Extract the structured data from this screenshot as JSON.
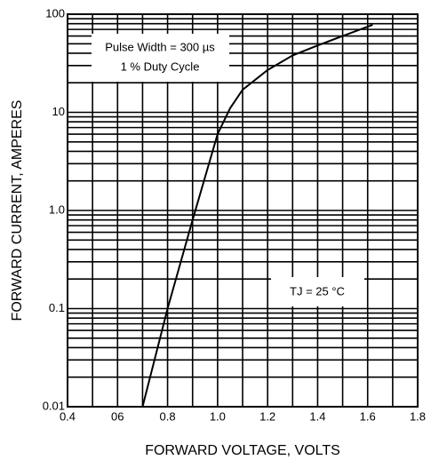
{
  "chart_data": {
    "type": "line",
    "xlabel": "FORWARD VOLTAGE, VOLTS",
    "ylabel": "FORWARD CURRENT, AMPERES",
    "annotations": [
      "Pulse Width = 300 µs",
      "1 % Duty Cycle",
      "TJ = 25 °C"
    ],
    "x": [
      0.7,
      0.8,
      0.9,
      1.0,
      1.05,
      1.1,
      1.2,
      1.3,
      1.4,
      1.5,
      1.62
    ],
    "values": [
      0.01,
      0.1,
      0.8,
      6,
      11,
      17,
      27,
      38,
      48,
      60,
      78
    ],
    "color": "#000000",
    "xlim": [
      0.4,
      1.8
    ],
    "xticks": [
      0.4,
      {
        "value": 0.6,
        "label": "06"
      },
      0.8,
      {
        "value": 1,
        "label": "1.0"
      },
      1.2,
      1.4,
      1.6,
      1.8
    ],
    "xminor": [
      0.5,
      0.7,
      0.9,
      1.1,
      1.3,
      1.5,
      1.7
    ],
    "ylim": [
      0.01,
      100
    ],
    "yticks": [
      0.01,
      0.1,
      {
        "value": 1,
        "label": "1.0"
      },
      10,
      100
    ],
    "yminor": [
      0.02,
      0.03,
      0.04,
      0.05,
      0.06,
      0.07,
      0.08,
      0.09,
      0.2,
      0.3,
      0.4,
      0.5,
      0.6,
      0.7,
      0.8,
      0.9,
      2,
      3,
      4,
      5,
      6,
      7,
      8,
      9,
      20,
      30,
      40,
      50,
      60,
      70,
      80,
      90
    ],
    "log_y": true,
    "grid": true
  }
}
